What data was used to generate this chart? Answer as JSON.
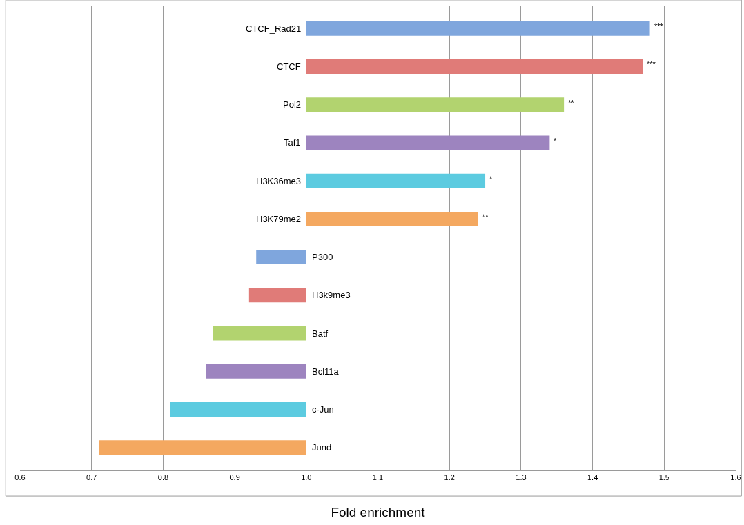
{
  "chart_data": {
    "type": "bar",
    "orientation": "horizontal",
    "xlabel": "Fold enrichment",
    "categories": [
      "CTCF_Rad21",
      "CTCF",
      "Pol2",
      "Taf1",
      "H3K36me3",
      "H3K79me2",
      "P300",
      "H3k9me3",
      "Batf",
      "Bcl11a",
      "c-Jun",
      "Jund"
    ],
    "base": [
      1,
      1,
      1,
      1,
      1,
      1,
      1,
      1,
      1,
      1,
      1,
      1
    ],
    "values": [
      0.48,
      0.47,
      0.36,
      0.34,
      0.25,
      0.24,
      -0.07,
      -0.08,
      -0.13,
      -0.14,
      -0.19,
      -0.29
    ],
    "colors": [
      "#7fa6dd",
      "#e07b78",
      "#b2d36f",
      "#9d84bf",
      "#5ccbe0",
      "#f4a860",
      "#7fa6dd",
      "#e07b78",
      "#b2d36f",
      "#9d84bf",
      "#5ccbe0",
      "#f4a860"
    ],
    "xlim": [
      0.6,
      1.6
    ],
    "xticks": [
      0.6,
      0.7,
      0.8,
      0.9,
      {
        "value": 1,
        "label": "1.0"
      },
      1.1,
      1.2,
      1.3,
      1.4,
      1.5,
      1.6
    ],
    "grid": "x",
    "annotations": [
      {
        "text": "***",
        "x": 1.48,
        "y": "CTCF_Rad21"
      },
      {
        "text": "***",
        "x": 1.47,
        "y": "CTCF"
      },
      {
        "text": "**",
        "x": 1.36,
        "y": "Pol2"
      },
      {
        "text": "*",
        "x": 1.34,
        "y": "Taf1"
      },
      {
        "text": "*",
        "x": 1.25,
        "y": "H3K36me3"
      },
      {
        "text": "**",
        "x": 1.24,
        "y": "H3K79me2"
      }
    ]
  }
}
